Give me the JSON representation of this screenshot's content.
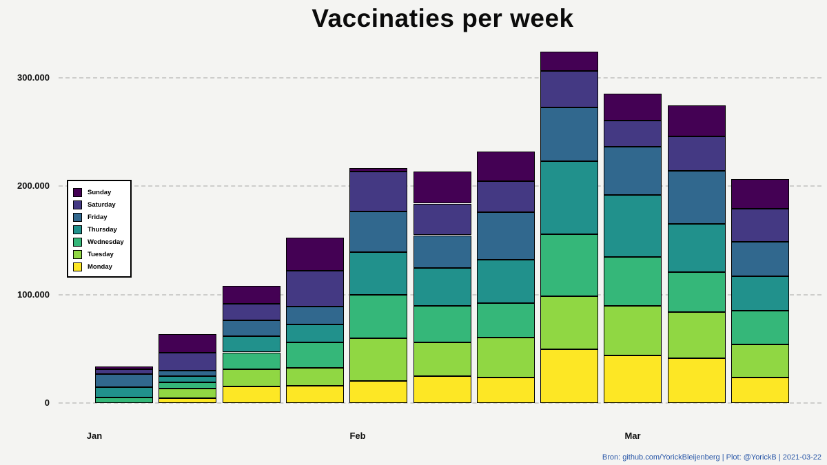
{
  "title": "Vaccinaties per week",
  "footer": "Bron: github.com/YorickBleijenberg | Plot: @YorickB  |  2021-03-22",
  "chart_data": {
    "type": "bar",
    "stacked": true,
    "title": "Vaccinaties per week",
    "num_weeks": 11,
    "x_axis": {
      "month_labels": [
        "Jan",
        "Feb",
        "Mar"
      ]
    },
    "y_axis": {
      "ticks": [
        {
          "label": "0",
          "value": 0
        },
        {
          "label": "100.000",
          "value": 100000
        },
        {
          "label": "200.000",
          "value": 200000
        },
        {
          "label": "300.000",
          "value": 300000
        }
      ],
      "range": [
        0,
        340000
      ],
      "gridlines": "dashed"
    },
    "legend": {
      "position": "upper-left-inside",
      "order_top_to_bottom": [
        "Sunday",
        "Saturday",
        "Friday",
        "Thursday",
        "Wednesday",
        "Tuesday",
        "Monday"
      ]
    },
    "series_stack_order_bottom_to_top": [
      {
        "name": "Monday",
        "color": "#fde725",
        "values": [
          0,
          4200,
          15300,
          15900,
          20500,
          24800,
          23300,
          49800,
          43900,
          41300,
          23700
        ]
      },
      {
        "name": "Tuesday",
        "color": "#90d743",
        "values": [
          0,
          9100,
          15900,
          16500,
          39200,
          31000,
          37100,
          48800,
          45600,
          42400,
          30300
        ]
      },
      {
        "name": "Wednesday",
        "color": "#35b779",
        "values": [
          5000,
          5500,
          15500,
          23700,
          39900,
          33700,
          31800,
          57200,
          45100,
          37100,
          31200
        ]
      },
      {
        "name": "Thursday",
        "color": "#21918c",
        "values": [
          9700,
          6100,
          14900,
          16500,
          39800,
          35000,
          40200,
          67400,
          57200,
          44500,
          32000
        ]
      },
      {
        "name": "Friday",
        "color": "#31688e",
        "values": [
          11900,
          5100,
          14600,
          16300,
          37500,
          30300,
          43500,
          49600,
          44500,
          48800,
          31600
        ]
      },
      {
        "name": "Saturday",
        "color": "#443983",
        "values": [
          4600,
          16500,
          15600,
          32900,
          36700,
          29200,
          28600,
          33500,
          24400,
          31800,
          30300
        ]
      },
      {
        "name": "Sunday",
        "color": "#440154",
        "values": [
          2400,
          17000,
          16300,
          30700,
          3200,
          29700,
          27500,
          18000,
          24800,
          29000,
          27500
        ]
      }
    ],
    "weekly_totals": [
      33600,
      63500,
      108000,
      152600,
      216800,
      213500,
      232100,
      324300,
      285500,
      274700,
      206600
    ]
  }
}
